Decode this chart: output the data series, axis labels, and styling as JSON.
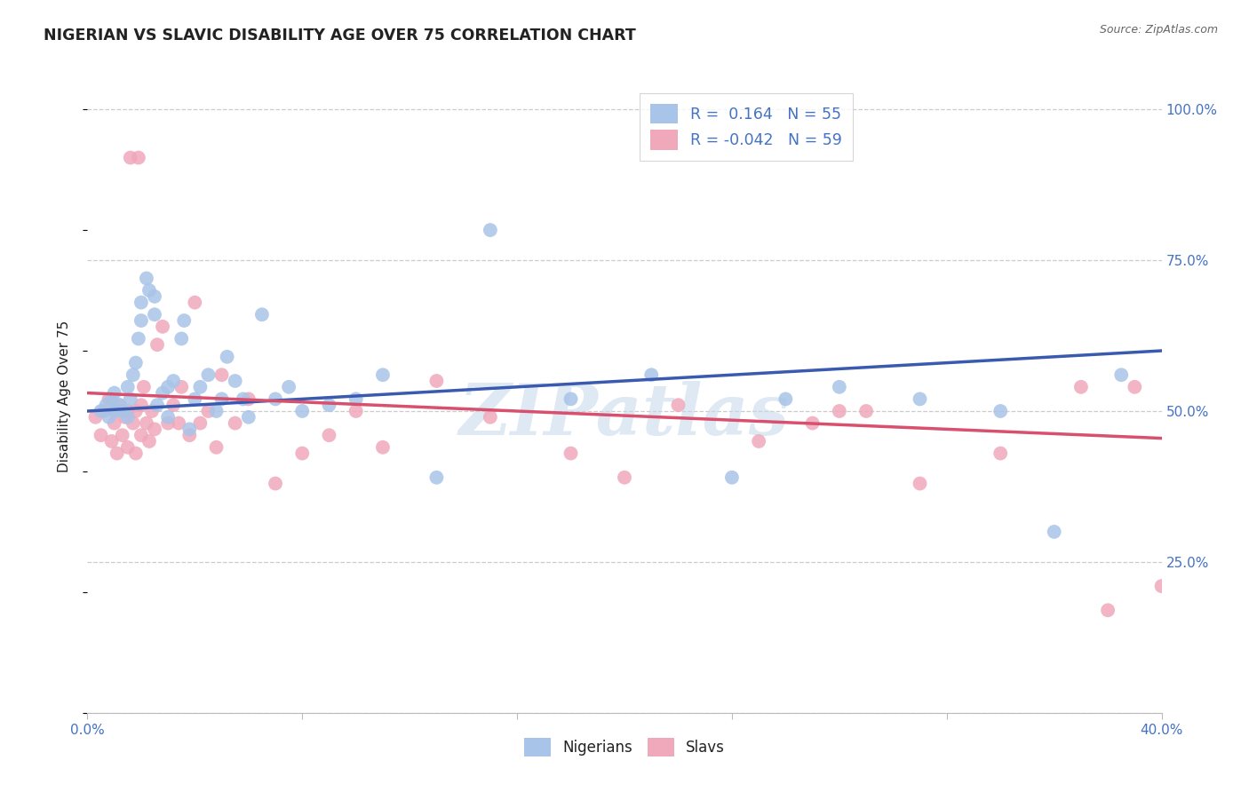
{
  "title": "NIGERIAN VS SLAVIC DISABILITY AGE OVER 75 CORRELATION CHART",
  "source": "Source: ZipAtlas.com",
  "ylabel": "Disability Age Over 75",
  "xmin": 0.0,
  "xmax": 0.4,
  "ymin": 0.0,
  "ymax": 1.05,
  "nigerians_R": "0.164",
  "nigerians_N": "55",
  "slavs_R": "-0.042",
  "slavs_N": "59",
  "nigerian_color": "#a8c4e8",
  "slav_color": "#f0a8bb",
  "nigerian_line_color": "#3a5ab0",
  "slav_line_color": "#d94f6e",
  "watermark": "ZIPatlas",
  "watermark_color": "#c5d8ea",
  "background_color": "#ffffff",
  "legend_text_color": "#4472c4",
  "title_color": "#222222",
  "axis_label_color": "#4472c4",
  "gridline_color": "#cccccc",
  "ytick_positions": [
    0.0,
    0.25,
    0.5,
    0.75,
    1.0
  ],
  "xtick_positions": [
    0.0,
    0.08,
    0.16,
    0.24,
    0.32,
    0.4
  ],
  "nigerian_x": [
    0.005,
    0.007,
    0.008,
    0.009,
    0.01,
    0.01,
    0.012,
    0.013,
    0.015,
    0.015,
    0.016,
    0.017,
    0.018,
    0.019,
    0.02,
    0.02,
    0.022,
    0.023,
    0.025,
    0.025,
    0.026,
    0.028,
    0.03,
    0.03,
    0.032,
    0.035,
    0.036,
    0.038,
    0.04,
    0.042,
    0.045,
    0.048,
    0.05,
    0.052,
    0.055,
    0.058,
    0.06,
    0.065,
    0.07,
    0.075,
    0.08,
    0.09,
    0.1,
    0.11,
    0.13,
    0.15,
    0.18,
    0.21,
    0.24,
    0.26,
    0.28,
    0.31,
    0.34,
    0.36,
    0.385
  ],
  "nigerian_y": [
    0.5,
    0.51,
    0.49,
    0.52,
    0.5,
    0.53,
    0.51,
    0.5,
    0.49,
    0.54,
    0.52,
    0.56,
    0.58,
    0.62,
    0.65,
    0.68,
    0.72,
    0.7,
    0.66,
    0.69,
    0.51,
    0.53,
    0.54,
    0.49,
    0.55,
    0.62,
    0.65,
    0.47,
    0.52,
    0.54,
    0.56,
    0.5,
    0.52,
    0.59,
    0.55,
    0.52,
    0.49,
    0.66,
    0.52,
    0.54,
    0.5,
    0.51,
    0.52,
    0.56,
    0.39,
    0.8,
    0.52,
    0.56,
    0.39,
    0.52,
    0.54,
    0.52,
    0.5,
    0.3,
    0.56
  ],
  "slav_x": [
    0.003,
    0.005,
    0.006,
    0.008,
    0.009,
    0.01,
    0.01,
    0.011,
    0.012,
    0.013,
    0.014,
    0.015,
    0.015,
    0.016,
    0.017,
    0.018,
    0.018,
    0.019,
    0.02,
    0.02,
    0.021,
    0.022,
    0.023,
    0.024,
    0.025,
    0.026,
    0.028,
    0.03,
    0.032,
    0.034,
    0.035,
    0.038,
    0.04,
    0.042,
    0.045,
    0.048,
    0.05,
    0.055,
    0.06,
    0.07,
    0.08,
    0.09,
    0.1,
    0.11,
    0.13,
    0.15,
    0.18,
    0.2,
    0.22,
    0.25,
    0.27,
    0.29,
    0.31,
    0.34,
    0.28,
    0.37,
    0.38,
    0.39,
    0.4
  ],
  "slav_y": [
    0.49,
    0.46,
    0.5,
    0.52,
    0.45,
    0.48,
    0.5,
    0.43,
    0.51,
    0.46,
    0.49,
    0.5,
    0.44,
    0.92,
    0.48,
    0.5,
    0.43,
    0.92,
    0.51,
    0.46,
    0.54,
    0.48,
    0.45,
    0.5,
    0.47,
    0.61,
    0.64,
    0.48,
    0.51,
    0.48,
    0.54,
    0.46,
    0.68,
    0.48,
    0.5,
    0.44,
    0.56,
    0.48,
    0.52,
    0.38,
    0.43,
    0.46,
    0.5,
    0.44,
    0.55,
    0.49,
    0.43,
    0.39,
    0.51,
    0.45,
    0.48,
    0.5,
    0.38,
    0.43,
    0.5,
    0.54,
    0.17,
    0.54,
    0.21
  ]
}
